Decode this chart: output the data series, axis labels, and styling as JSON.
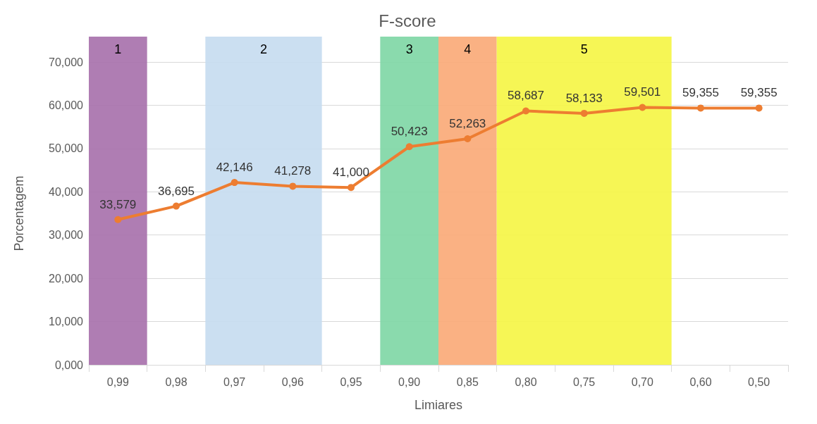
{
  "chart_data": {
    "type": "line",
    "title": "F-score",
    "xlabel": "Limiares",
    "ylabel": "Porcentagem",
    "categories": [
      "0,99",
      "0,98",
      "0,97",
      "0,96",
      "0,95",
      "0,90",
      "0,85",
      "0,80",
      "0,75",
      "0,70",
      "0,60",
      "0,50"
    ],
    "series": [
      {
        "color": "#ed7d31",
        "values": [
          33.579,
          36.695,
          42.146,
          41.278,
          41.0,
          50.423,
          52.263,
          58.687,
          58.133,
          59.501,
          59.355,
          59.355
        ],
        "value_labels": [
          "33,579",
          "36,695",
          "42,146",
          "41,278",
          "41,000",
          "50,423",
          "52,263",
          "58,687",
          "58,133",
          "59,501",
          "59,355",
          "59,355"
        ]
      }
    ],
    "ylim": [
      0,
      70
    ],
    "yticks": [
      {
        "value": 0,
        "label": "0,000"
      },
      {
        "value": 10,
        "label": "10,000"
      },
      {
        "value": 20,
        "label": "20,000"
      },
      {
        "value": 30,
        "label": "30,000"
      },
      {
        "value": 40,
        "label": "40,000"
      },
      {
        "value": 50,
        "label": "50,000"
      },
      {
        "value": 60,
        "label": "60,000"
      },
      {
        "value": 70,
        "label": "70,000"
      }
    ],
    "bands": [
      {
        "axis": "x",
        "from": "0,99",
        "to": "0,99",
        "label": "1",
        "color": "#a66fab"
      },
      {
        "axis": "x",
        "from": "0,97",
        "to": "0,96",
        "label": "2",
        "color": "#c5dcef"
      },
      {
        "axis": "x",
        "from": "0,90",
        "to": "0,90",
        "label": "3",
        "color": "#7dd6a4"
      },
      {
        "axis": "x",
        "from": "0,85",
        "to": "0,85",
        "label": "4",
        "color": "#f9a875"
      },
      {
        "axis": "x",
        "from": "0,80",
        "to": "0,70",
        "label": "5",
        "color": "#f5f542"
      }
    ],
    "grid": "y",
    "marker": "circle",
    "line_style": "solid"
  }
}
